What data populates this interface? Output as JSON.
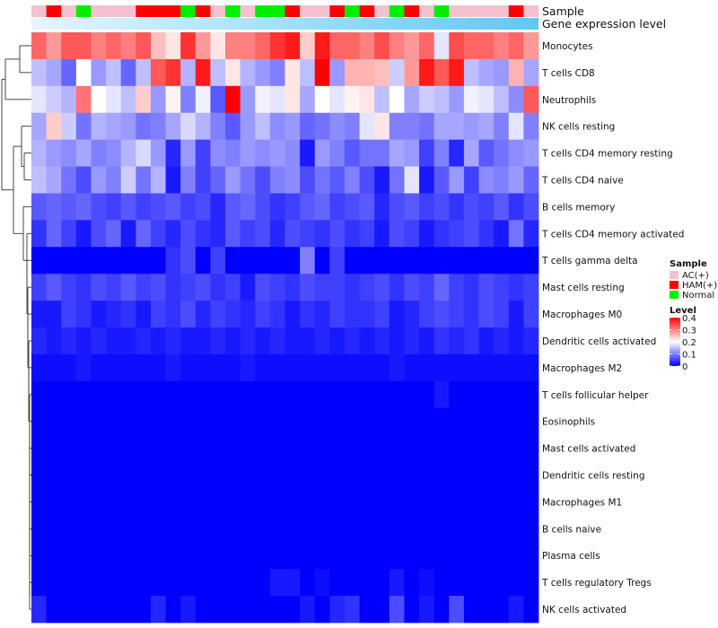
{
  "chart_data": {
    "type": "heatmap",
    "annotation_rows": [
      "Sample",
      "Gene expression level"
    ],
    "rows": [
      "Monocytes",
      "T cells CD8",
      "Neutrophils",
      "NK cells resting",
      "T cells CD4 memory resting",
      "T cells CD4 naive",
      "B cells memory",
      "T cells CD4 memory activated",
      "T cells gamma delta",
      "Mast cells resting",
      "Macrophages M0",
      "Dendritic cells activated",
      "Macrophages M2",
      "T cells follicular helper",
      "Eosinophils",
      "Mast cells activated",
      "Dendritic cells resting",
      "Macrophages M1",
      "B cells naive",
      "Plasma cells",
      "T cells regulatory  Tregs",
      "NK cells activated"
    ],
    "sample_groups": [
      "AC",
      "HAM",
      "AC",
      "Normal",
      "AC",
      "AC",
      "AC",
      "HAM",
      "HAM",
      "HAM",
      "Normal",
      "HAM",
      "AC",
      "Normal",
      "AC",
      "Normal",
      "Normal",
      "HAM",
      "AC",
      "AC",
      "HAM",
      "Normal",
      "HAM",
      "AC",
      "Normal",
      "HAM",
      "AC",
      "Normal",
      "AC",
      "AC",
      "AC",
      "AC",
      "HAM",
      "AC"
    ],
    "values": [
      [
        0.32,
        0.28,
        0.33,
        0.33,
        0.3,
        0.32,
        0.3,
        0.33,
        0.25,
        0.22,
        0.36,
        0.28,
        0.22,
        0.3,
        0.3,
        0.32,
        0.36,
        0.38,
        0.24,
        0.38,
        0.32,
        0.32,
        0.3,
        0.34,
        0.3,
        0.28,
        0.32,
        0.18,
        0.34,
        0.32,
        0.32,
        0.3,
        0.32,
        0.28
      ],
      [
        0.15,
        0.13,
        0.08,
        0.2,
        0.12,
        0.15,
        0.08,
        0.15,
        0.33,
        0.36,
        0.14,
        0.38,
        0.15,
        0.22,
        0.14,
        0.12,
        0.1,
        0.22,
        0.15,
        0.4,
        0.12,
        0.26,
        0.26,
        0.25,
        0.16,
        0.28,
        0.38,
        0.33,
        0.38,
        0.15,
        0.13,
        0.12,
        0.26,
        0.13
      ],
      [
        0.18,
        0.16,
        0.14,
        0.31,
        0.2,
        0.18,
        0.15,
        0.24,
        0.12,
        0.21,
        0.1,
        0.19,
        0.07,
        0.4,
        0.12,
        0.19,
        0.18,
        0.22,
        0.13,
        0.2,
        0.18,
        0.21,
        0.22,
        0.15,
        0.2,
        0.13,
        0.16,
        0.15,
        0.12,
        0.19,
        0.18,
        0.15,
        0.11,
        0.33
      ],
      [
        0.13,
        0.24,
        0.16,
        0.09,
        0.14,
        0.13,
        0.12,
        0.09,
        0.1,
        0.13,
        0.17,
        0.14,
        0.1,
        0.07,
        0.12,
        0.15,
        0.11,
        0.12,
        0.08,
        0.09,
        0.11,
        0.1,
        0.18,
        0.22,
        0.1,
        0.1,
        0.09,
        0.13,
        0.13,
        0.12,
        0.13,
        0.1,
        0.18,
        0.1
      ],
      [
        0.14,
        0.12,
        0.11,
        0.13,
        0.1,
        0.11,
        0.14,
        0.17,
        0.12,
        0.03,
        0.12,
        0.05,
        0.11,
        0.1,
        0.12,
        0.11,
        0.12,
        0.11,
        0.02,
        0.12,
        0.1,
        0.07,
        0.09,
        0.09,
        0.13,
        0.12,
        0.05,
        0.1,
        0.03,
        0.13,
        0.07,
        0.09,
        0.11,
        0.12
      ],
      [
        0.15,
        0.13,
        0.09,
        0.06,
        0.12,
        0.1,
        0.16,
        0.09,
        0.14,
        0.02,
        0.1,
        0.05,
        0.08,
        0.12,
        0.09,
        0.06,
        0.1,
        0.11,
        0.06,
        0.09,
        0.07,
        0.1,
        0.06,
        0.02,
        0.09,
        0.18,
        0.02,
        0.07,
        0.12,
        0.05,
        0.11,
        0.1,
        0.12,
        0.08
      ],
      [
        0.07,
        0.08,
        0.07,
        0.08,
        0.06,
        0.05,
        0.07,
        0.05,
        0.06,
        0.07,
        0.05,
        0.06,
        0.03,
        0.07,
        0.08,
        0.06,
        0.04,
        0.05,
        0.07,
        0.08,
        0.05,
        0.06,
        0.07,
        0.03,
        0.06,
        0.07,
        0.05,
        0.06,
        0.04,
        0.06,
        0.05,
        0.07,
        0.04,
        0.06
      ],
      [
        0.04,
        0.08,
        0.05,
        0.02,
        0.06,
        0.08,
        0.02,
        0.08,
        0.05,
        0.03,
        0.06,
        0.04,
        0.03,
        0.07,
        0.05,
        0.06,
        0.03,
        0.06,
        0.05,
        0.04,
        0.06,
        0.04,
        0.05,
        0.02,
        0.06,
        0.05,
        0.02,
        0.04,
        0.05,
        0.06,
        0.04,
        0.02,
        0.09,
        0.03
      ],
      [
        0.0,
        0.0,
        0.0,
        0.0,
        0.0,
        0.0,
        0.0,
        0.0,
        0.0,
        0.04,
        0.06,
        0.0,
        0.05,
        0.0,
        0.0,
        0.0,
        0.0,
        0.0,
        0.1,
        0.0,
        0.05,
        0.0,
        0.0,
        0.0,
        0.0,
        0.0,
        0.0,
        0.0,
        0.0,
        0.0,
        0.0,
        0.0,
        0.0,
        0.0
      ],
      [
        0.05,
        0.07,
        0.05,
        0.04,
        0.06,
        0.05,
        0.07,
        0.05,
        0.06,
        0.04,
        0.05,
        0.06,
        0.04,
        0.05,
        0.02,
        0.06,
        0.05,
        0.04,
        0.06,
        0.05,
        0.05,
        0.04,
        0.05,
        0.06,
        0.04,
        0.06,
        0.05,
        0.08,
        0.05,
        0.04,
        0.06,
        0.05,
        0.04,
        0.05
      ],
      [
        0.02,
        0.02,
        0.05,
        0.04,
        0.02,
        0.03,
        0.04,
        0.02,
        0.05,
        0.04,
        0.06,
        0.03,
        0.05,
        0.04,
        0.03,
        0.05,
        0.04,
        0.02,
        0.04,
        0.03,
        0.05,
        0.04,
        0.04,
        0.05,
        0.02,
        0.03,
        0.05,
        0.06,
        0.05,
        0.04,
        0.06,
        0.05,
        0.02,
        0.05
      ],
      [
        0.03,
        0.02,
        0.03,
        0.02,
        0.03,
        0.02,
        0.02,
        0.03,
        0.02,
        0.03,
        0.02,
        0.02,
        0.03,
        0.02,
        0.03,
        0.02,
        0.03,
        0.02,
        0.02,
        0.03,
        0.02,
        0.03,
        0.02,
        0.03,
        0.02,
        0.03,
        0.02,
        0.04,
        0.03,
        0.04,
        0.02,
        0.03,
        0.02,
        0.03
      ],
      [
        0.01,
        0.01,
        0.01,
        0.02,
        0.01,
        0.01,
        0.01,
        0.01,
        0.01,
        0.02,
        0.01,
        0.01,
        0.01,
        0.01,
        0.02,
        0.01,
        0.01,
        0.01,
        0.01,
        0.01,
        0.01,
        0.01,
        0.01,
        0.01,
        0.02,
        0.01,
        0.01,
        0.01,
        0.01,
        0.01,
        0.01,
        0.01,
        0.01,
        0.01
      ],
      [
        0.0,
        0.0,
        0.0,
        0.0,
        0.0,
        0.0,
        0.0,
        0.0,
        0.0,
        0.0,
        0.0,
        0.0,
        0.0,
        0.0,
        0.0,
        0.0,
        0.0,
        0.0,
        0.0,
        0.0,
        0.0,
        0.0,
        0.0,
        0.0,
        0.0,
        0.0,
        0.0,
        0.02,
        0.0,
        0.0,
        0.0,
        0.0,
        0.0,
        0.0
      ],
      [
        0.0,
        0.0,
        0.0,
        0.0,
        0.0,
        0.0,
        0.0,
        0.0,
        0.0,
        0.0,
        0.0,
        0.0,
        0.0,
        0.0,
        0.0,
        0.0,
        0.0,
        0.0,
        0.0,
        0.0,
        0.0,
        0.0,
        0.0,
        0.0,
        0.0,
        0.0,
        0.0,
        0.0,
        0.0,
        0.0,
        0.0,
        0.0,
        0.0,
        0.0
      ],
      [
        0.0,
        0.0,
        0.0,
        0.0,
        0.0,
        0.0,
        0.0,
        0.0,
        0.0,
        0.0,
        0.0,
        0.0,
        0.0,
        0.0,
        0.0,
        0.0,
        0.0,
        0.0,
        0.0,
        0.0,
        0.0,
        0.0,
        0.0,
        0.0,
        0.0,
        0.0,
        0.0,
        0.0,
        0.0,
        0.0,
        0.0,
        0.0,
        0.0,
        0.0
      ],
      [
        0.0,
        0.0,
        0.0,
        0.0,
        0.0,
        0.0,
        0.0,
        0.0,
        0.0,
        0.0,
        0.0,
        0.0,
        0.0,
        0.0,
        0.0,
        0.0,
        0.0,
        0.0,
        0.0,
        0.0,
        0.0,
        0.0,
        0.0,
        0.0,
        0.0,
        0.0,
        0.0,
        0.0,
        0.0,
        0.0,
        0.0,
        0.0,
        0.0,
        0.0
      ],
      [
        0.0,
        0.0,
        0.0,
        0.0,
        0.0,
        0.0,
        0.0,
        0.0,
        0.0,
        0.0,
        0.0,
        0.0,
        0.0,
        0.0,
        0.0,
        0.0,
        0.0,
        0.0,
        0.0,
        0.0,
        0.0,
        0.0,
        0.0,
        0.0,
        0.0,
        0.0,
        0.0,
        0.0,
        0.0,
        0.0,
        0.0,
        0.0,
        0.0,
        0.0
      ],
      [
        0.0,
        0.0,
        0.0,
        0.0,
        0.0,
        0.0,
        0.0,
        0.0,
        0.0,
        0.0,
        0.0,
        0.0,
        0.0,
        0.0,
        0.0,
        0.0,
        0.0,
        0.0,
        0.0,
        0.0,
        0.0,
        0.0,
        0.0,
        0.0,
        0.0,
        0.0,
        0.0,
        0.0,
        0.0,
        0.0,
        0.0,
        0.0,
        0.0,
        0.0
      ],
      [
        0.0,
        0.0,
        0.0,
        0.0,
        0.0,
        0.0,
        0.0,
        0.0,
        0.0,
        0.0,
        0.0,
        0.0,
        0.0,
        0.0,
        0.0,
        0.0,
        0.0,
        0.0,
        0.0,
        0.0,
        0.0,
        0.0,
        0.0,
        0.0,
        0.0,
        0.0,
        0.0,
        0.0,
        0.0,
        0.0,
        0.0,
        0.0,
        0.0,
        0.0
      ],
      [
        0.0,
        0.0,
        0.0,
        0.0,
        0.0,
        0.0,
        0.0,
        0.0,
        0.0,
        0.0,
        0.0,
        0.0,
        0.0,
        0.0,
        0.0,
        0.0,
        0.02,
        0.02,
        0.0,
        0.01,
        0.0,
        0.0,
        0.0,
        0.0,
        0.02,
        0.0,
        0.01,
        0.0,
        0.0,
        0.0,
        0.0,
        0.0,
        0.0,
        0.0
      ],
      [
        0.03,
        0.0,
        0.0,
        0.0,
        0.0,
        0.0,
        0.0,
        0.0,
        0.03,
        0.0,
        0.02,
        0.0,
        0.0,
        0.0,
        0.0,
        0.0,
        0.0,
        0.0,
        0.02,
        0.0,
        0.03,
        0.04,
        0.0,
        0.0,
        0.06,
        0.0,
        0.02,
        0.0,
        0.06,
        0.0,
        0.0,
        0.0,
        0.02,
        0.0
      ]
    ],
    "color_scale": {
      "min": 0,
      "max": 0.4,
      "low": "#0000ff",
      "mid": "#ffffff",
      "high": "#ff0000",
      "mid_value": 0.2
    },
    "legend": {
      "sample_title": "Sample",
      "sample_items": [
        {
          "key": "AC",
          "label": "AC(+)",
          "color": "#f4c2cf"
        },
        {
          "key": "HAM",
          "label": "HAM(+)",
          "color": "#ff0000"
        },
        {
          "key": "Normal",
          "label": "Normal",
          "color": "#00ee00"
        }
      ],
      "level_title": "Level",
      "level_ticks": [
        "0.4",
        "0.3",
        "0.2",
        "0.1",
        "0"
      ],
      "placement": "right"
    },
    "gene_expression_color": "#5ec8f5"
  }
}
